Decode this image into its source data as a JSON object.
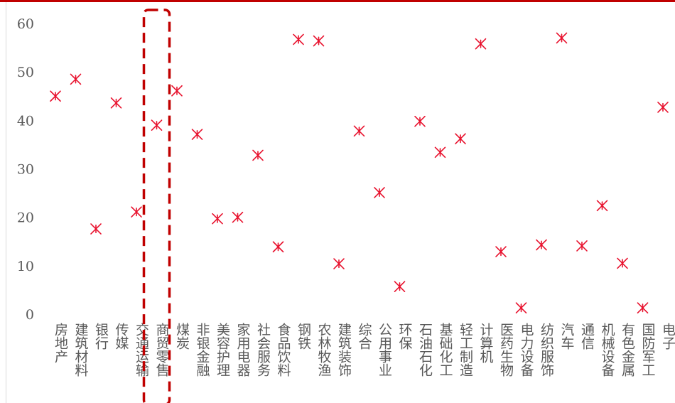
{
  "chart_data": {
    "type": "scatter",
    "title": "",
    "xlabel": "",
    "ylabel": "",
    "ylim": [
      0,
      60
    ],
    "yticks": [
      0,
      10,
      20,
      30,
      40,
      50,
      60
    ],
    "grid": "horizontal-off",
    "legend": "none",
    "marker": "asterisk-x",
    "color": "#e8112d",
    "highlight_color": "#c00000",
    "highlight_category": "商贸零售",
    "categories": [
      "房地产",
      "建筑材料",
      "银行",
      "传媒",
      "交通运输",
      "商贸零售",
      "煤炭",
      "非银金融",
      "美容护理",
      "家用电器",
      "社会服务",
      "食品饮料",
      "钢铁",
      "农林牧渔",
      "建筑装饰",
      "综合",
      "公用事业",
      "环保",
      "石油石化",
      "基础化工",
      "轻工制造",
      "计算机",
      "医药生物",
      "电力设备",
      "纺织服饰",
      "汽车",
      "通信",
      "机械设备",
      "有色金属",
      "国防军工",
      "电子"
    ],
    "values": [
      45.0,
      48.5,
      17.6,
      43.6,
      21.1,
      39.0,
      46.1,
      37.1,
      19.7,
      20.0,
      32.8,
      13.9,
      56.7,
      56.4,
      10.4,
      37.8,
      25.1,
      5.7,
      39.8,
      33.4,
      36.2,
      55.8,
      12.9,
      1.3,
      14.3,
      57.0,
      14.1,
      22.4,
      10.5,
      1.3,
      42.7
    ]
  }
}
